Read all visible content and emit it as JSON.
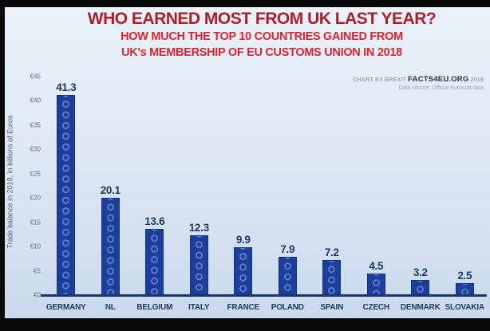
{
  "header": {
    "title": "WHO EARNED MOST FROM UK LAST YEAR?",
    "subtitle_line1": "HOW MUCH THE TOP 10 COUNTRIES GAINED FROM",
    "subtitle_line2": "UK's MEMBERSHIP OF EU CUSTOMS UNION IN 2018"
  },
  "credit": {
    "prefix": "CHART BY BREXIT ",
    "brand": "FACTS4EU.ORG",
    "year": " 2019",
    "source": "Data source: Official Eurostat data"
  },
  "colors": {
    "title_red": "#ab1f2a",
    "subtitle_red": "#d9242f",
    "bar_blue": "#1e3e9c",
    "bar_ring_blue": "#5f7fd0",
    "label_navy": "#1f3864",
    "axis_navy": "#17356b",
    "background_top": "#eaf1f9",
    "background_bottom": "#c9d9ec"
  },
  "chart_data": {
    "type": "bar",
    "title": "WHO EARNED MOST FROM UK LAST YEAR?",
    "subtitle": "HOW MUCH THE TOP 10 COUNTRIES GAINED FROM UK's MEMBERSHIP OF EU CUSTOMS UNION IN 2018",
    "categories": [
      "GERMANY",
      "NL",
      "BELGIUM",
      "ITALY",
      "FRANCE",
      "POLAND",
      "SPAIN",
      "CZECH",
      "DENMARK",
      "SLOVAKIA"
    ],
    "values": [
      41.3,
      20.1,
      13.6,
      12.3,
      9.9,
      7.9,
      7.2,
      4.5,
      3.2,
      2.5
    ],
    "value_labels": [
      "41.3",
      "20.1",
      "13.6",
      "12.3",
      "9.9",
      "7.9",
      "7.2",
      "4.5",
      "3.2",
      "2.5"
    ],
    "xlabel": "",
    "ylabel": "Trade balance in 2018, in billions of Euros",
    "ylim": [
      0,
      45
    ],
    "yticks": [
      "€0",
      "€5",
      "€10",
      "€15",
      "€20",
      "€25",
      "€30",
      "€35",
      "€40",
      "€45"
    ],
    "grid": false,
    "legend": false,
    "bar_pattern": "eu-ring-circles"
  }
}
